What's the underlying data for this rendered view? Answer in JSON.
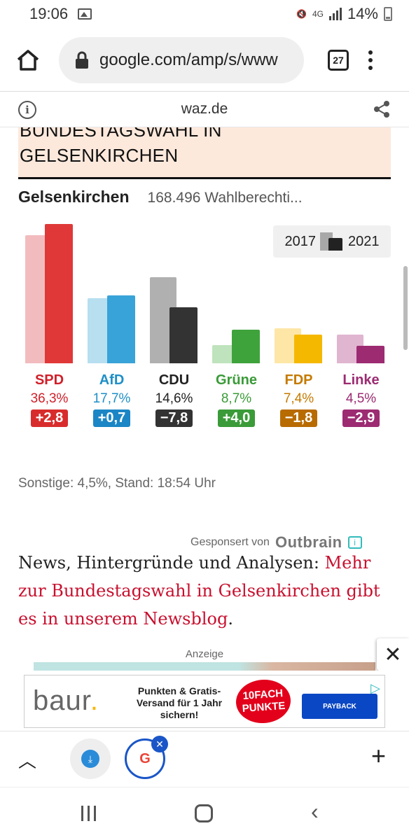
{
  "status_bar": {
    "time": "19:06",
    "network": "4G",
    "battery": "14%"
  },
  "toolbar": {
    "url": "google.com/amp/s/www",
    "tab_count": "27"
  },
  "site_bar": {
    "domain": "waz.de",
    "info_glyph": "i"
  },
  "headline": {
    "line1": "BUNDESTAGSWAHL IN",
    "line2": "GELSENKIRCHEN"
  },
  "chart_header": {
    "city": "Gelsenkirchen",
    "voters": "168.496 Wahlberechti..."
  },
  "legend": {
    "year_a": "2017",
    "year_b": "2021"
  },
  "chart_data": {
    "type": "bar",
    "categories": [
      "SPD",
      "AfD",
      "CDU",
      "Grüne",
      "FDP",
      "Linke"
    ],
    "series": [
      {
        "name": "2017",
        "values": [
          33.5,
          17.0,
          22.4,
          4.7,
          9.2,
          7.4
        ]
      },
      {
        "name": "2021",
        "values": [
          36.3,
          17.7,
          14.6,
          8.7,
          7.4,
          4.5
        ]
      }
    ],
    "result_labels": [
      "36,3%",
      "17,7%",
      "14,6%",
      "8,7%",
      "7,4%",
      "4,5%"
    ],
    "change_labels": [
      "+2,8",
      "+0,7",
      "−7,8",
      "+4,0",
      "−1,8",
      "−2,9"
    ],
    "colors_2021": [
      "#e03838",
      "#38a3d8",
      "#333333",
      "#3fa33c",
      "#f5b800",
      "#9c2b72"
    ],
    "colors_2017": [
      "#f2bcbf",
      "#b7dff0",
      "#b0b0b0",
      "#bfe3bd",
      "#fde6a6",
      "#e0b5d0"
    ],
    "label_colors": [
      "#d0202a",
      "#1f8fc7",
      "#222222",
      "#3a9b38",
      "#c57a00",
      "#9c2b72"
    ],
    "badge_colors": [
      "#d82c2c",
      "#1b86c5",
      "#333333",
      "#3a9b38",
      "#b86b00",
      "#9c2b72"
    ],
    "ylim": [
      0,
      40
    ]
  },
  "footnote": "Sonstige: 4,5%, Stand: 18:54 Uhr",
  "sponsor": {
    "label": "Gesponsert von",
    "brand": "Outbrain"
  },
  "news": {
    "lead": "News, Hintergründe und Analysen: ",
    "link": "Mehr zur Bundestagswahl in Gelsenkirchen gibt es in unserem Newsblog",
    "tail": "."
  },
  "ad": {
    "label": "Anzeige",
    "brand": "baur",
    "brand_dot": ".",
    "text": "Punkten & Gratis-Versand für 1 Jahr sichern!",
    "badge_line1": "10FACH",
    "badge_line2": "PUNKTE",
    "payback": "PAYBACK"
  },
  "bottom_bar": {
    "g_letter": "G"
  }
}
